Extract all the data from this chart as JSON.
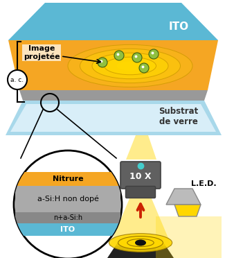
{
  "bg_color": "#ffffff",
  "ito_top_color": "#5bb8d4",
  "orange_layer_color": "#f5a623",
  "gray_layer_color": "#999999",
  "light_blue_color": "#a8d8ea",
  "inner_blue_color": "#d8eef8",
  "label_ITO_top": "ITO",
  "label_image": "Image\nprojetée",
  "label_substrat": "Substrat\nde verre",
  "label_ac": "a. c.",
  "label_nitrure": "Nitrure",
  "label_asi": "a-Si:H non dopé",
  "label_nasi": "n+a-Si:h",
  "label_ito_bot": "ITO",
  "label_10x": "10 X",
  "label_led": "L.E.D.",
  "yellow": "#FFD700",
  "green_ball": "#90c040",
  "dark_gray": "#555555",
  "mid_gray": "#888888",
  "light_gray": "#aaaaaa",
  "red_arrow": "#cc2200",
  "cyan_dot": "#44cccc",
  "black": "#000000",
  "white": "#ffffff"
}
